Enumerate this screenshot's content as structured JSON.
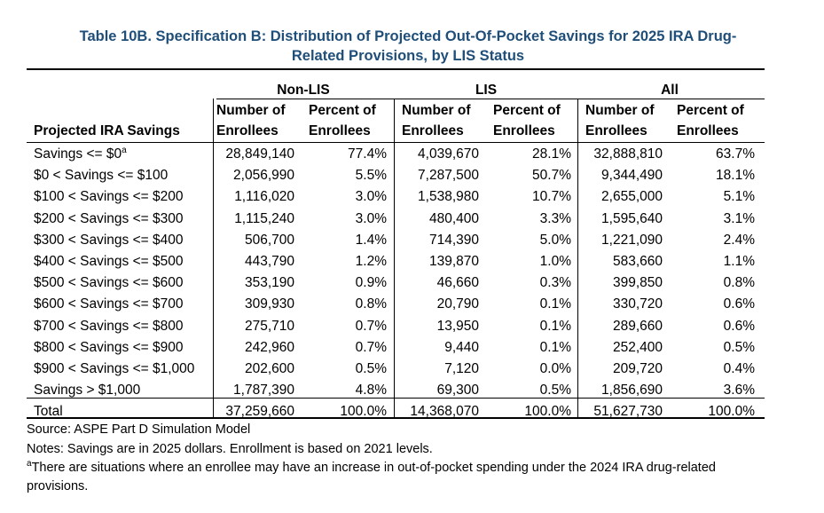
{
  "title_line1": "Table 10B. Specification B: Distribution of Projected Out-Of-Pocket Savings for 2025 IRA Drug-",
  "title_line2": "Related Provisions, by LIS Status",
  "group_headers": [
    "Non-LIS",
    "LIS",
    "All"
  ],
  "row_header": "Projected IRA Savings",
  "col_header_line1": [
    "Number of",
    "Percent of",
    "Number of",
    "Percent of",
    "Number of",
    "Percent of"
  ],
  "col_header_line2": [
    "Enrollees",
    "Enrollees",
    "Enrollees",
    "Enrollees",
    "Enrollees",
    "Enrollees"
  ],
  "rows": [
    {
      "label": "Savings <= $0",
      "sup": "a",
      "values": [
        "28,849,140",
        "77.4%",
        "4,039,670",
        "28.1%",
        "32,888,810",
        "63.7%"
      ]
    },
    {
      "label": "$0 < Savings <= $100",
      "sup": "",
      "values": [
        "2,056,990",
        "5.5%",
        "7,287,500",
        "50.7%",
        "9,344,490",
        "18.1%"
      ]
    },
    {
      "label": "$100 < Savings <= $200",
      "sup": "",
      "values": [
        "1,116,020",
        "3.0%",
        "1,538,980",
        "10.7%",
        "2,655,000",
        "5.1%"
      ]
    },
    {
      "label": "$200 < Savings <= $300",
      "sup": "",
      "values": [
        "1,115,240",
        "3.0%",
        "480,400",
        "3.3%",
        "1,595,640",
        "3.1%"
      ]
    },
    {
      "label": "$300 < Savings <= $400",
      "sup": "",
      "values": [
        "506,700",
        "1.4%",
        "714,390",
        "5.0%",
        "1,221,090",
        "2.4%"
      ]
    },
    {
      "label": "$400 < Savings <= $500",
      "sup": "",
      "values": [
        "443,790",
        "1.2%",
        "139,870",
        "1.0%",
        "583,660",
        "1.1%"
      ]
    },
    {
      "label": "$500 < Savings <= $600",
      "sup": "",
      "values": [
        "353,190",
        "0.9%",
        "46,660",
        "0.3%",
        "399,850",
        "0.8%"
      ]
    },
    {
      "label": "$600 < Savings <= $700",
      "sup": "",
      "values": [
        "309,930",
        "0.8%",
        "20,790",
        "0.1%",
        "330,720",
        "0.6%"
      ]
    },
    {
      "label": "$700 < Savings <= $800",
      "sup": "",
      "values": [
        "275,710",
        "0.7%",
        "13,950",
        "0.1%",
        "289,660",
        "0.6%"
      ]
    },
    {
      "label": "$800 < Savings <= $900",
      "sup": "",
      "values": [
        "242,960",
        "0.7%",
        "9,440",
        "0.1%",
        "252,400",
        "0.5%"
      ]
    },
    {
      "label": "$900 < Savings <= $1,000",
      "sup": "",
      "values": [
        "202,600",
        "0.5%",
        "7,120",
        "0.0%",
        "209,720",
        "0.4%"
      ]
    },
    {
      "label": "Savings > $1,000",
      "sup": "",
      "values": [
        "1,787,390",
        "4.8%",
        "69,300",
        "0.5%",
        "1,856,690",
        "3.6%"
      ]
    },
    {
      "label": "Total",
      "sup": "",
      "values": [
        "37,259,660",
        "100.0%",
        "14,368,070",
        "100.0%",
        "51,627,730",
        "100.0%"
      ]
    }
  ],
  "source": "Source: ASPE Part D Simulation Model",
  "notes": "Notes: Savings are in 2025 dollars.  Enrollment is based on 2021 levels.",
  "footnote_marker": "a",
  "footnote_line1": "There are situations where an enrollee may have an increase in out-of-pocket spending under the 2024 IRA drug-related",
  "footnote_line2": "provisions."
}
